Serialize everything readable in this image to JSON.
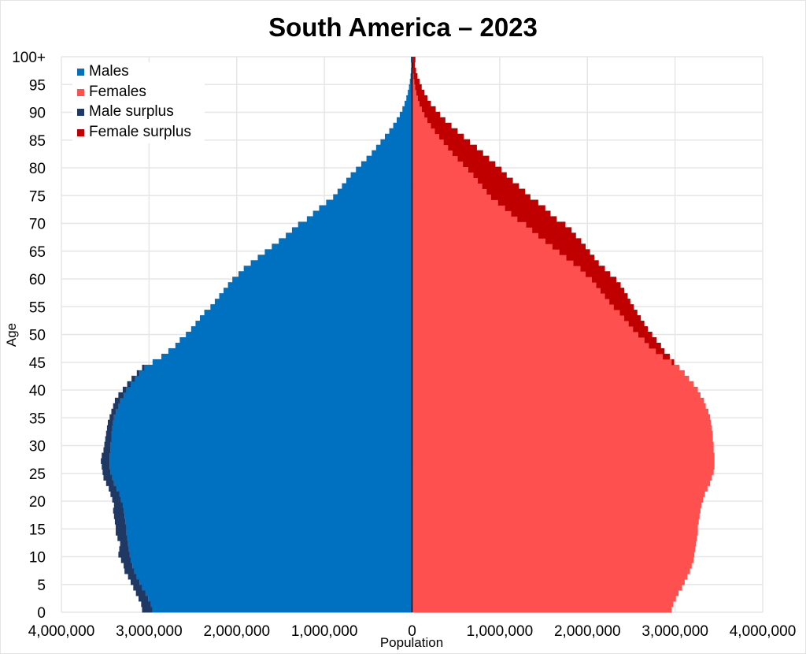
{
  "chart_data": {
    "type": "bar",
    "subtype": "population-pyramid",
    "title": "South America  – 2023",
    "xlabel": "Population",
    "ylabel": "Age",
    "xlim": [
      -4000000,
      4000000
    ],
    "ylim": [
      0,
      100
    ],
    "x_tick_labels": [
      "4,000,000",
      "3,000,000",
      "2,000,000",
      "1,000,000",
      "0",
      "1,000,000",
      "2,000,000",
      "3,000,000",
      "4,000,000"
    ],
    "y_tick_labels": [
      "0",
      "5",
      "10",
      "15",
      "20",
      "25",
      "30",
      "35",
      "40",
      "45",
      "50",
      "55",
      "60",
      "65",
      "70",
      "75",
      "80",
      "85",
      "90",
      "95",
      "100+"
    ],
    "colors": {
      "males": "#0070c0",
      "females": "#ff5050",
      "male_surplus": "#203864",
      "female_surplus": "#c00000",
      "grid": "#e6e6e6",
      "axis": "#000000"
    },
    "legend": {
      "position": "top-left",
      "entries": [
        {
          "label": "Males",
          "color": "#0070c0"
        },
        {
          "label": "Females",
          "color": "#ff5050"
        },
        {
          "label": "Male surplus",
          "color": "#203864"
        },
        {
          "label": "Female surplus",
          "color": "#c00000"
        }
      ]
    },
    "age_groups": [
      "0",
      "1",
      "2",
      "3",
      "4",
      "5",
      "6",
      "7",
      "8",
      "9",
      "10",
      "11",
      "12",
      "13",
      "14",
      "15",
      "16",
      "17",
      "18",
      "19",
      "20",
      "21",
      "22",
      "23",
      "24",
      "25",
      "26",
      "27",
      "28",
      "29",
      "30",
      "31",
      "32",
      "33",
      "34",
      "35",
      "36",
      "37",
      "38",
      "39",
      "40",
      "41",
      "42",
      "43",
      "44",
      "45",
      "46",
      "47",
      "48",
      "49",
      "50",
      "51",
      "52",
      "53",
      "54",
      "55",
      "56",
      "57",
      "58",
      "59",
      "60",
      "61",
      "62",
      "63",
      "64",
      "65",
      "66",
      "67",
      "68",
      "69",
      "70",
      "71",
      "72",
      "73",
      "74",
      "75",
      "76",
      "77",
      "78",
      "79",
      "80",
      "81",
      "82",
      "83",
      "84",
      "85",
      "86",
      "87",
      "88",
      "89",
      "90",
      "91",
      "92",
      "93",
      "94",
      "95",
      "96",
      "97",
      "98",
      "99",
      "100+"
    ],
    "series": [
      {
        "name": "Males",
        "values": [
          3080000,
          3090000,
          3120000,
          3150000,
          3180000,
          3210000,
          3240000,
          3280000,
          3290000,
          3320000,
          3350000,
          3340000,
          3330000,
          3360000,
          3380000,
          3380000,
          3390000,
          3400000,
          3410000,
          3400000,
          3420000,
          3440000,
          3460000,
          3490000,
          3520000,
          3530000,
          3540000,
          3550000,
          3540000,
          3520000,
          3510000,
          3500000,
          3490000,
          3480000,
          3470000,
          3450000,
          3430000,
          3410000,
          3390000,
          3350000,
          3300000,
          3250000,
          3200000,
          3140000,
          3080000,
          2960000,
          2860000,
          2780000,
          2700000,
          2650000,
          2580000,
          2520000,
          2470000,
          2420000,
          2370000,
          2300000,
          2250000,
          2200000,
          2150000,
          2100000,
          2050000,
          1980000,
          1920000,
          1840000,
          1760000,
          1680000,
          1600000,
          1520000,
          1440000,
          1370000,
          1300000,
          1200000,
          1130000,
          1060000,
          980000,
          900000,
          850000,
          800000,
          750000,
          700000,
          640000,
          580000,
          520000,
          460000,
          410000,
          360000,
          310000,
          260000,
          215000,
          175000,
          140000,
          110000,
          85000,
          65000,
          48000,
          35000,
          25000,
          17000,
          11000,
          7000,
          12000
        ]
      },
      {
        "name": "Females",
        "values": [
          2960000,
          2980000,
          3010000,
          3040000,
          3080000,
          3110000,
          3140000,
          3170000,
          3190000,
          3210000,
          3220000,
          3230000,
          3240000,
          3250000,
          3260000,
          3260000,
          3270000,
          3280000,
          3290000,
          3300000,
          3320000,
          3340000,
          3370000,
          3400000,
          3420000,
          3440000,
          3450000,
          3450000,
          3450000,
          3440000,
          3440000,
          3430000,
          3430000,
          3420000,
          3410000,
          3400000,
          3380000,
          3350000,
          3330000,
          3290000,
          3260000,
          3210000,
          3160000,
          3110000,
          3050000,
          2990000,
          2940000,
          2880000,
          2840000,
          2790000,
          2740000,
          2690000,
          2650000,
          2610000,
          2570000,
          2530000,
          2490000,
          2460000,
          2420000,
          2380000,
          2330000,
          2260000,
          2200000,
          2130000,
          2080000,
          2030000,
          1980000,
          1930000,
          1870000,
          1820000,
          1750000,
          1650000,
          1580000,
          1520000,
          1440000,
          1350000,
          1290000,
          1220000,
          1150000,
          1080000,
          1020000,
          950000,
          880000,
          810000,
          740000,
          660000,
          590000,
          520000,
          450000,
          380000,
          320000,
          270000,
          215000,
          175000,
          140000,
          110000,
          85000,
          62000,
          45000,
          32000,
          38000
        ]
      }
    ]
  }
}
